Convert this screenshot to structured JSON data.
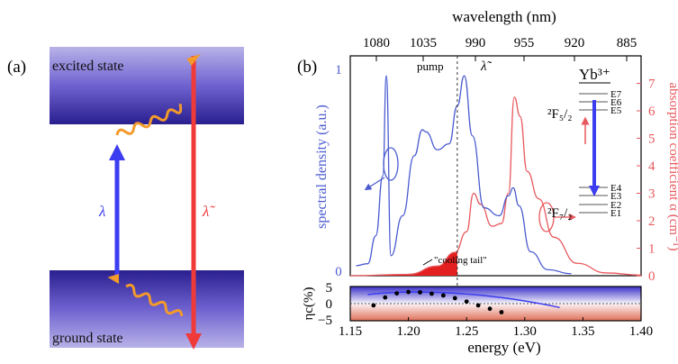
{
  "panel_a": {
    "label": "(a)",
    "excited_state": "excited state",
    "ground_state": "ground state",
    "lambda": "λ",
    "lambda_tilde": "λ̃"
  },
  "panel_b": {
    "label": "(b)",
    "top_axis_title": "wavelength (nm)",
    "top_ticks": [
      "1080",
      "1035",
      "990",
      "955",
      "920",
      "885"
    ],
    "bottom_axis_title": "energy (eV)",
    "bottom_ticks": [
      "1.15",
      "1.20",
      "1.25",
      "1.30",
      "1.35",
      "1.40"
    ],
    "left_axis_title": "spectral density (a.u.)",
    "left_ticks": [
      "0",
      "1"
    ],
    "right_axis_title": "absorption coefficient α (cm⁻¹)",
    "right_ticks": [
      "0",
      "1",
      "2",
      "3",
      "4",
      "5",
      "6",
      "7"
    ],
    "pump_label": "pump",
    "lambda_tilde_label": "λ̃",
    "cooling_tail_label": "\"cooling tail\"",
    "yb_title": "Yb³⁺",
    "levels": [
      "E7",
      "E6",
      "E5",
      "E4",
      "E3",
      "E2",
      "E1"
    ],
    "f52_label": "²F₅/₂",
    "f72_label": "²F₇/₂",
    "eta_axis_title": "ηc(%)",
    "eta_ticks": [
      "5",
      "0",
      "−5"
    ]
  },
  "colors": {
    "blue": "#4a5bd0",
    "red": "#e8585c",
    "band_dark": "#2a1f8f",
    "band_light": "#b4aee6",
    "orange": "#f39a2a",
    "arrow_blue": "#3c3cf0",
    "arrow_red": "#f03a3a"
  },
  "chart_data": {
    "type": "line",
    "xlabel": "energy (eV)",
    "x_range": [
      1.15,
      1.4
    ],
    "series": [
      {
        "name": "spectral density (a.u.)",
        "axis": "left",
        "x": [
          1.155,
          1.165,
          1.172,
          1.178,
          1.181,
          1.185,
          1.195,
          1.205,
          1.212,
          1.215,
          1.225,
          1.235,
          1.242,
          1.248,
          1.255,
          1.265,
          1.278,
          1.286,
          1.29,
          1.295,
          1.305,
          1.32,
          1.34
        ],
        "y": [
          0.05,
          0.06,
          0.2,
          0.5,
          1.0,
          0.1,
          0.3,
          0.6,
          0.73,
          0.72,
          0.63,
          0.66,
          0.85,
          1.0,
          0.7,
          0.34,
          0.3,
          0.4,
          0.44,
          0.35,
          0.12,
          0.03,
          0.01
        ]
      },
      {
        "name": "absorption coefficient α (cm⁻¹)",
        "axis": "right",
        "x": [
          1.15,
          1.2,
          1.225,
          1.24,
          1.25,
          1.256,
          1.262,
          1.272,
          1.28,
          1.286,
          1.291,
          1.296,
          1.302,
          1.312,
          1.325,
          1.345,
          1.37,
          1.4
        ],
        "y": [
          0.0,
          0.05,
          0.35,
          0.85,
          1.6,
          3.0,
          2.6,
          1.8,
          1.9,
          3.0,
          6.5,
          5.8,
          3.8,
          2.8,
          1.4,
          0.45,
          0.1,
          0.02
        ]
      },
      {
        "name": "ηc(%)",
        "axis": "eta",
        "x": [
          1.17,
          1.18,
          1.19,
          1.2,
          1.21,
          1.22,
          1.23,
          1.24,
          1.25,
          1.26,
          1.27,
          1.28
        ],
        "y": [
          -0.5,
          1.8,
          3.0,
          3.4,
          3.3,
          2.9,
          2.4,
          1.6,
          0.6,
          -0.5,
          -1.5,
          -2.5
        ]
      }
    ],
    "dashed_line_x": 1.242,
    "eta_ylim": [
      -5,
      5
    ],
    "spectral_ylim": [
      0,
      1.1
    ],
    "absorption_ylim": [
      0,
      8
    ]
  }
}
